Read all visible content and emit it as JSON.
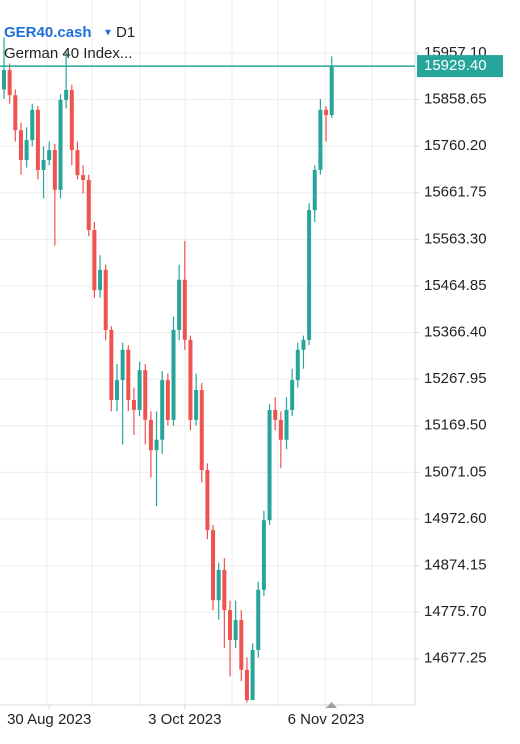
{
  "chart_data": {
    "type": "candlestick",
    "title": "GER40.cash",
    "timeframe": "D1",
    "subtitle": "German 40 Index...",
    "categories": [
      null,
      null,
      null,
      null,
      null,
      null,
      null,
      null,
      "30 Aug 2023",
      null,
      null,
      null,
      null,
      null,
      null,
      null,
      null,
      null,
      null,
      null,
      null,
      null,
      null,
      null,
      null,
      null,
      null,
      null,
      null,
      null,
      null,
      null,
      "3 Oct 2023",
      null,
      null,
      null,
      null,
      null,
      null,
      null,
      null,
      null,
      null,
      null,
      null,
      null,
      null,
      null,
      null,
      null,
      null,
      null,
      null,
      null,
      null,
      null,
      null,
      "6 Nov 2023",
      null
    ],
    "open": [
      15880,
      15921,
      15868,
      15794,
      15731,
      15773,
      15837,
      15710,
      15731,
      15752,
      15668,
      15858,
      15879,
      15752,
      15699,
      15689,
      15583,
      15456,
      15499,
      15372,
      15224,
      15266,
      15330,
      15224,
      15203,
      15287,
      15182,
      15118,
      15140,
      15266,
      15182,
      15372,
      15478,
      15351,
      15182,
      15245,
      15076,
      14949,
      14801,
      14865,
      14780,
      14717,
      14759,
      14654,
      14590,
      14696,
      14823,
      14970,
      15203,
      15182,
      15140,
      15203,
      15266,
      15330,
      15351,
      15625,
      15710,
      15837,
      15826
    ],
    "high": [
      15990,
      15935,
      15880,
      15810,
      15800,
      15850,
      15845,
      15760,
      15770,
      15765,
      15870,
      15960,
      15890,
      15770,
      15720,
      15700,
      15600,
      15530,
      15510,
      15380,
      15300,
      15345,
      15340,
      15250,
      15305,
      15300,
      15200,
      15200,
      15285,
      15280,
      15400,
      15510,
      15560,
      15360,
      15280,
      15260,
      15090,
      14960,
      14880,
      14890,
      14800,
      14800,
      14780,
      14680,
      14710,
      14840,
      14990,
      15215,
      15230,
      15200,
      15230,
      15290,
      15345,
      15360,
      15640,
      15720,
      15860,
      15845,
      15950
    ],
    "low": [
      15860,
      15850,
      15770,
      15700,
      15715,
      15760,
      15690,
      15650,
      15720,
      15550,
      15650,
      15840,
      15720,
      15690,
      15660,
      15570,
      15440,
      15440,
      15350,
      15200,
      15200,
      15130,
      15200,
      15150,
      15190,
      15130,
      15060,
      15000,
      15110,
      15170,
      15170,
      15350,
      15330,
      15160,
      15170,
      15050,
      14930,
      14780,
      14760,
      14700,
      14640,
      14700,
      14630,
      14585,
      14600,
      14680,
      14810,
      14960,
      15160,
      15080,
      15120,
      15190,
      15250,
      15290,
      15340,
      15600,
      15700,
      15770,
      15820
    ],
    "close": [
      15921,
      15868,
      15794,
      15731,
      15773,
      15837,
      15710,
      15731,
      15752,
      15668,
      15858,
      15879,
      15752,
      15699,
      15689,
      15583,
      15456,
      15499,
      15372,
      15224,
      15266,
      15330,
      15224,
      15203,
      15287,
      15182,
      15118,
      15140,
      15266,
      15182,
      15372,
      15478,
      15351,
      15182,
      15245,
      15076,
      14949,
      14801,
      14865,
      14780,
      14717,
      14759,
      14654,
      14590,
      14696,
      14823,
      14970,
      15203,
      15182,
      15140,
      15203,
      15266,
      15330,
      15351,
      15625,
      15710,
      15837,
      15826,
      15929.4
    ],
    "up_color": "#26a69a",
    "down_color": "#ef5350",
    "ylim": [
      14579.6,
      16047.9
    ],
    "yticks": [
      {
        "value": 15957.1,
        "label": "15957.10"
      },
      15858.65,
      {
        "value": 15760.2,
        "label": "15760.20"
      },
      15661.75,
      {
        "value": 15563.3,
        "label": "15563.30"
      },
      15464.85,
      {
        "value": 15366.4,
        "label": "15366.40"
      },
      15267.95,
      {
        "value": 15169.5,
        "label": "15169.50"
      },
      15071.05,
      {
        "value": 14972.6,
        "label": "14972.60"
      },
      14874.15,
      {
        "value": 14775.7,
        "label": "14775.70"
      },
      14677.25
    ],
    "current_price": {
      "value": 15929.4,
      "label": "15929.40"
    },
    "grid": true
  }
}
